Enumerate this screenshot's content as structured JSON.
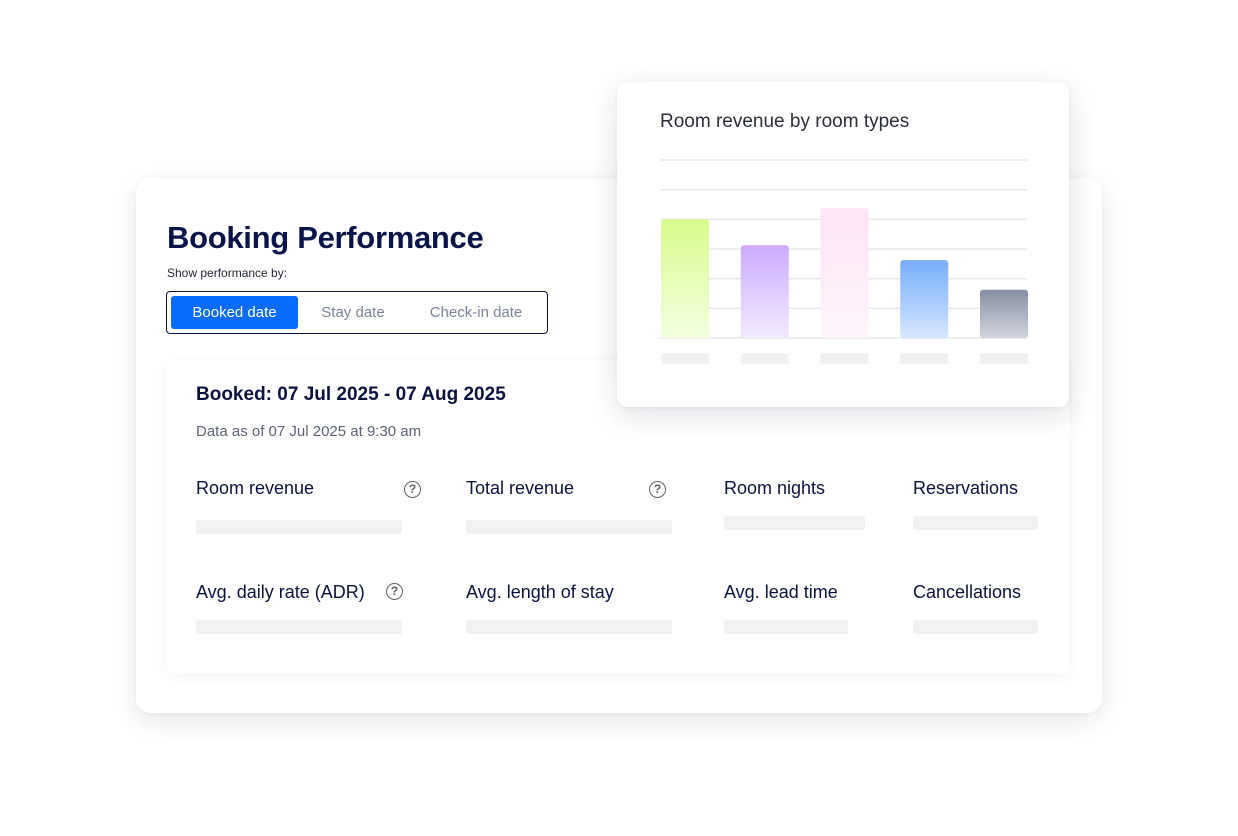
{
  "header": {
    "title": "Booking Performance",
    "subtitle": "Show performance by:"
  },
  "tabs": [
    {
      "label": "Booked date",
      "selected": true
    },
    {
      "label": "Stay date",
      "selected": false
    },
    {
      "label": "Check-in date",
      "selected": false
    }
  ],
  "summary": {
    "range": "Booked: 07 Jul 2025 - 07 Aug 2025",
    "as_of": "Data as of 07 Jul 2025 at 9:30 am"
  },
  "metrics": [
    {
      "label": "Room revenue",
      "help": true
    },
    {
      "label": "Total revenue",
      "help": true
    },
    {
      "label": "Room nights",
      "help": false
    },
    {
      "label": "Reservations",
      "help": false
    },
    {
      "label": "Avg. daily rate (ADR)",
      "help": true
    },
    {
      "label": "Avg. length of stay",
      "help": false
    },
    {
      "label": "Avg. lead time",
      "help": false
    },
    {
      "label": "Cancellations",
      "help": false
    }
  ],
  "colors": {
    "accent": "#0a6cff",
    "text_dark": "#0b1240",
    "skeleton": "#f2f2f4"
  },
  "chart_data": {
    "type": "bar",
    "title": "Room revenue by room types",
    "categories": [
      "",
      "",
      "",
      "",
      ""
    ],
    "values": [
      3.2,
      2.5,
      3.5,
      2.1,
      1.3
    ],
    "ylim": [
      0,
      4.8
    ],
    "grid": true,
    "colors": [
      [
        "#d7fb8c",
        "#f3ffe0"
      ],
      [
        "#cdabff",
        "#f2eafe"
      ],
      [
        "#fde3f6",
        "#fef5fb"
      ],
      [
        "#77adfa",
        "#d5e6fe"
      ],
      [
        "#878ea2",
        "#d2d6df"
      ]
    ]
  }
}
